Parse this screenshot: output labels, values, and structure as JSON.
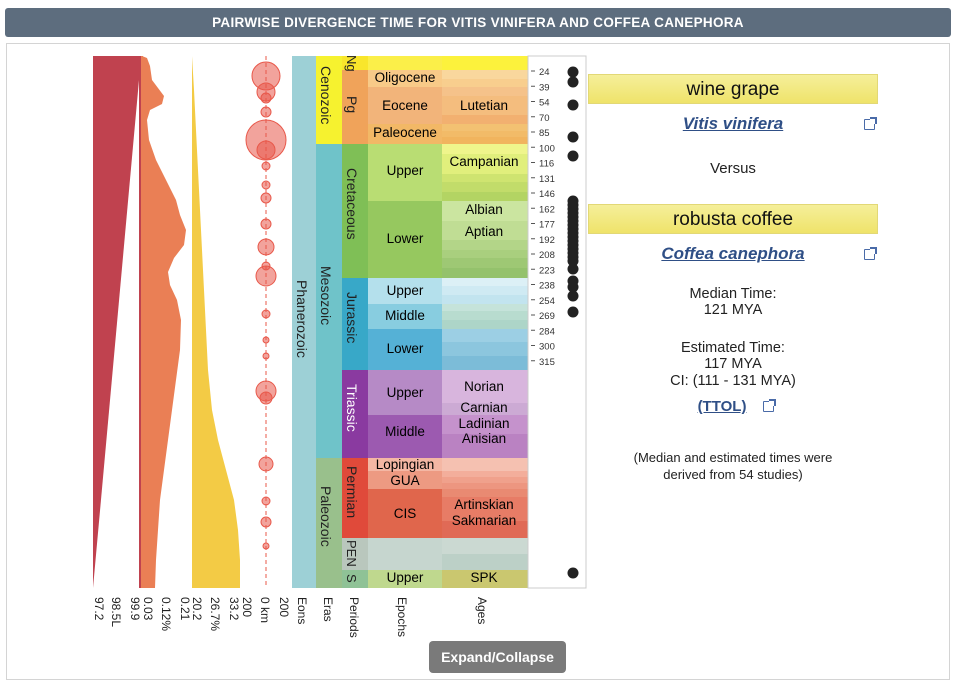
{
  "title": "PAIRWISE DIVERGENCE TIME FOR VITIS VINIFERA AND COFFEA CANEPHORA",
  "organism1": {
    "common": "wine grape",
    "scientific": "Vitis vinifera"
  },
  "versus": "Versus",
  "organism2": {
    "common": "robusta coffee",
    "scientific": "Coffea canephora"
  },
  "median": {
    "label": "Median Time:",
    "value": "121 MYA"
  },
  "estimated": {
    "label": "Estimated Time:",
    "value": "117 MYA",
    "ci": "CI: (111 - 131 MYA)"
  },
  "ttol": "(TTOL)",
  "note": "(Median and estimated times were derived from 54 studies)",
  "expand_label": "Expand/Collapse",
  "left_axes": {
    "a1": [
      "97.2",
      "98.5L",
      "99.9"
    ],
    "a2": [
      "0.03",
      "0.12%",
      "0.21"
    ],
    "a3": [
      "20.2",
      "26.7%",
      "33.2"
    ],
    "a4": [
      "200",
      "0 km",
      "200"
    ]
  },
  "col_labels": [
    "Eons",
    "Eras",
    "Periods",
    "Epochs",
    "Ages"
  ],
  "time_ticks": [
    "24",
    "39",
    "54",
    "70",
    "85",
    "100",
    "116",
    "131",
    "146",
    "162",
    "177",
    "192",
    "208",
    "223",
    "238",
    "254",
    "269",
    "284",
    "300",
    "315"
  ],
  "eon": "Phanerozoic",
  "eras": [
    "Cenozoic",
    "Mesozoic",
    "Paleozoic"
  ],
  "periods": [
    "Ng",
    "Pg",
    "Cretaceous",
    "Jurassic",
    "Triassic",
    "Permian",
    "PEN",
    "S"
  ],
  "epochs": [
    "Oligocene",
    "Eocene",
    "Paleocene",
    "Upper",
    "Lower",
    "Upper",
    "Middle",
    "Lower",
    "Upper",
    "Middle",
    "Lopingian",
    "GUA",
    "CIS",
    "Upper"
  ],
  "ages": [
    "Lutetian",
    "Campanian",
    "Albian",
    "Aptian",
    "Norian",
    "Carnian",
    "Ladinian",
    "Anisian",
    "Artinskian",
    "Sakmarian",
    "SPK"
  ],
  "colors": {
    "titlebar": "#5d6d7e",
    "red_panel": "#c0424f",
    "orange_panel": "#ea7f55",
    "yellow_panel": "#f3cb45",
    "bubble": "#e8584a",
    "link": "#2f4f86"
  }
}
